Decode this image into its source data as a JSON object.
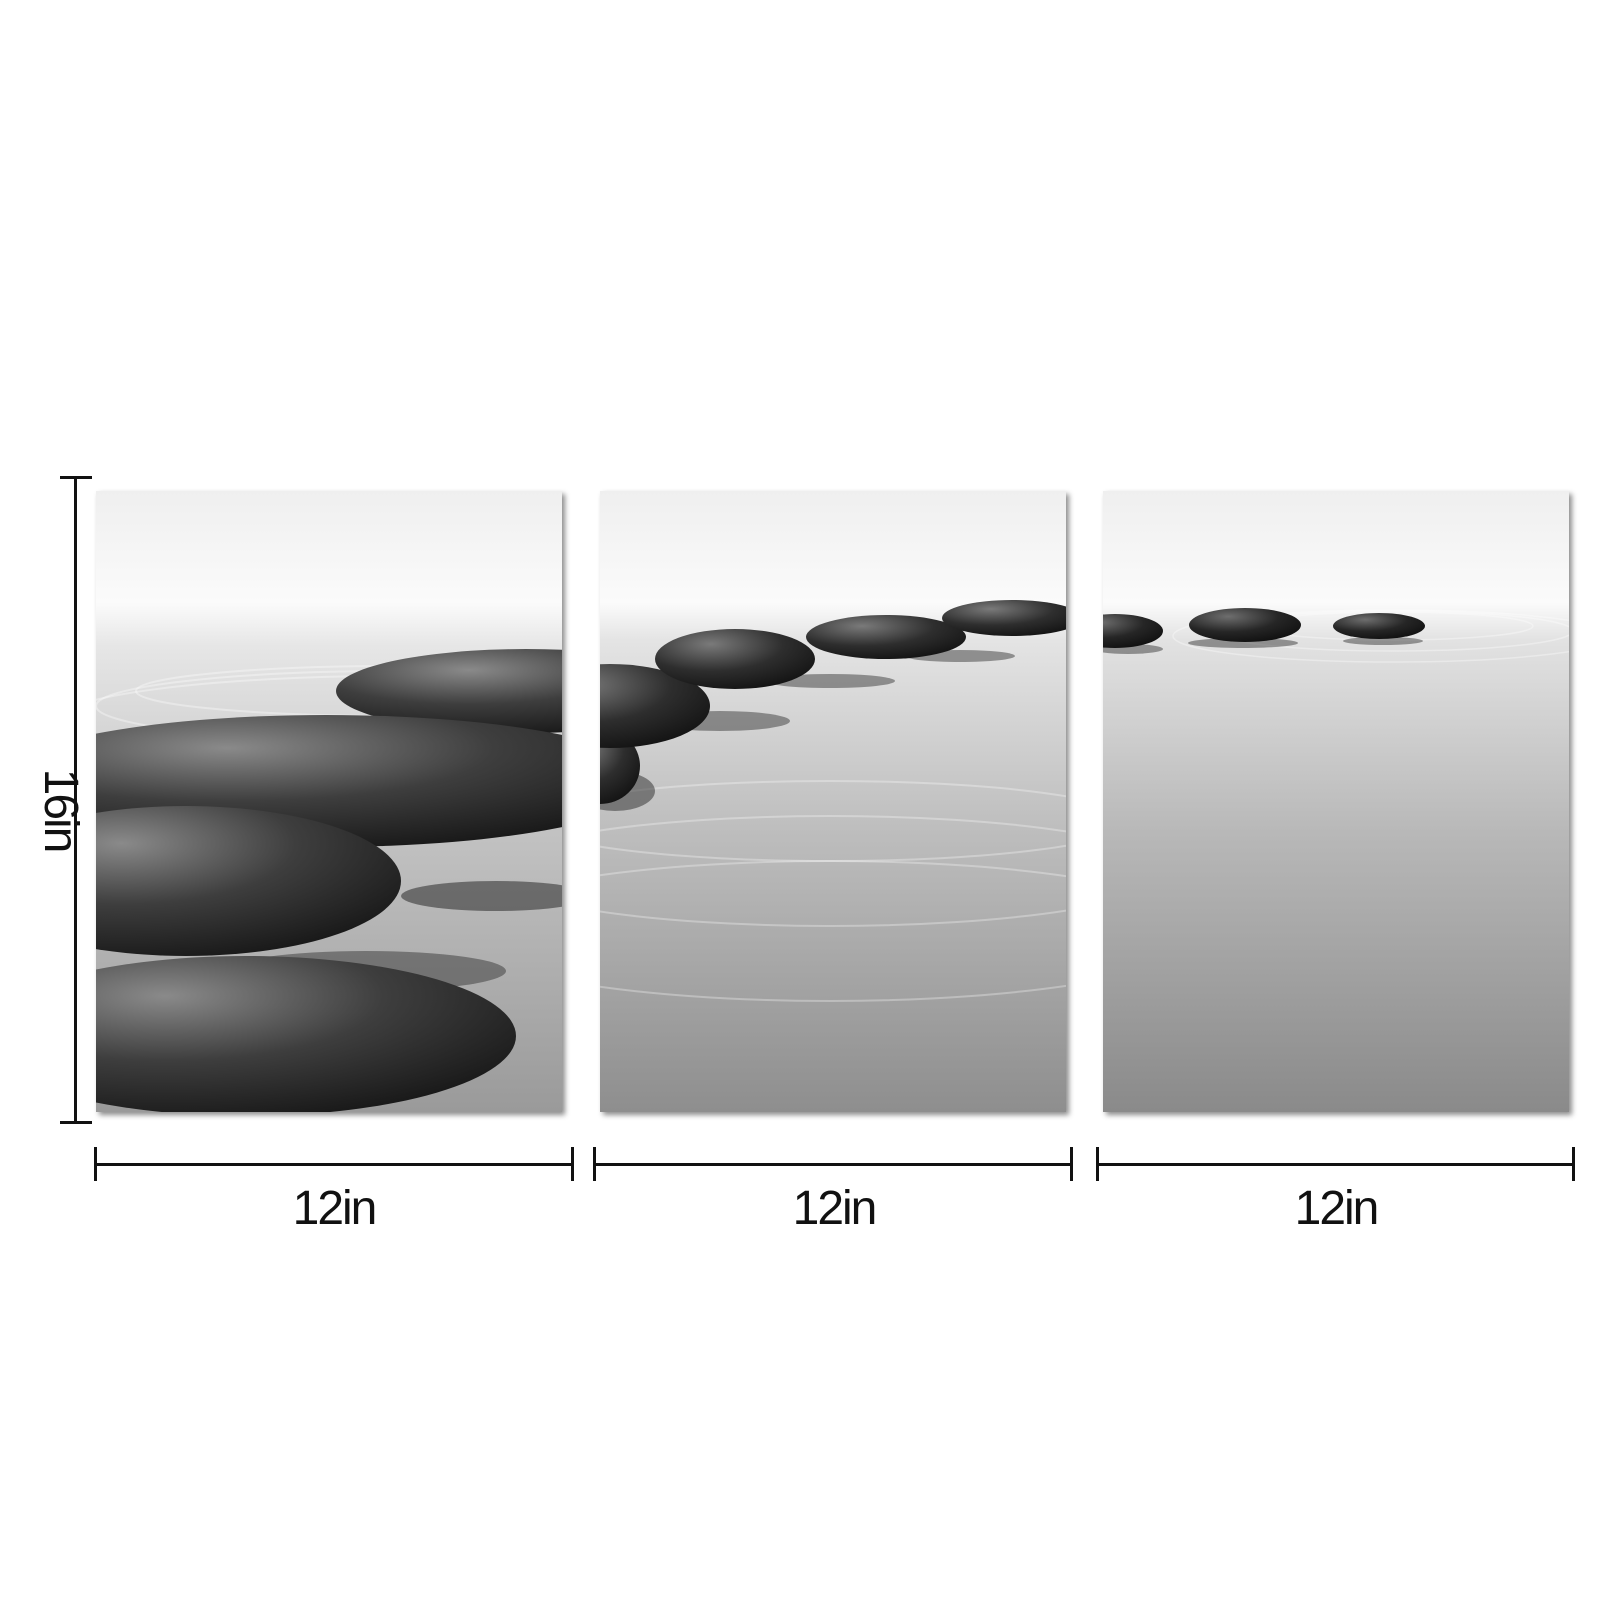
{
  "dimensions": {
    "height_label": "16in",
    "panel_width_labels": [
      "12in",
      "12in",
      "12in"
    ]
  },
  "artwork": {
    "panels": [
      {
        "name": "left-panel"
      },
      {
        "name": "middle-panel"
      },
      {
        "name": "right-panel"
      }
    ],
    "colors": {
      "sky": "#f7f7f7",
      "water_top": "#d6d6d6",
      "water_bottom": "#8e8e8e",
      "stone_dark": "#1a1a1a",
      "stone_light": "#7a7a7a",
      "dimension_line": "#111111"
    }
  }
}
